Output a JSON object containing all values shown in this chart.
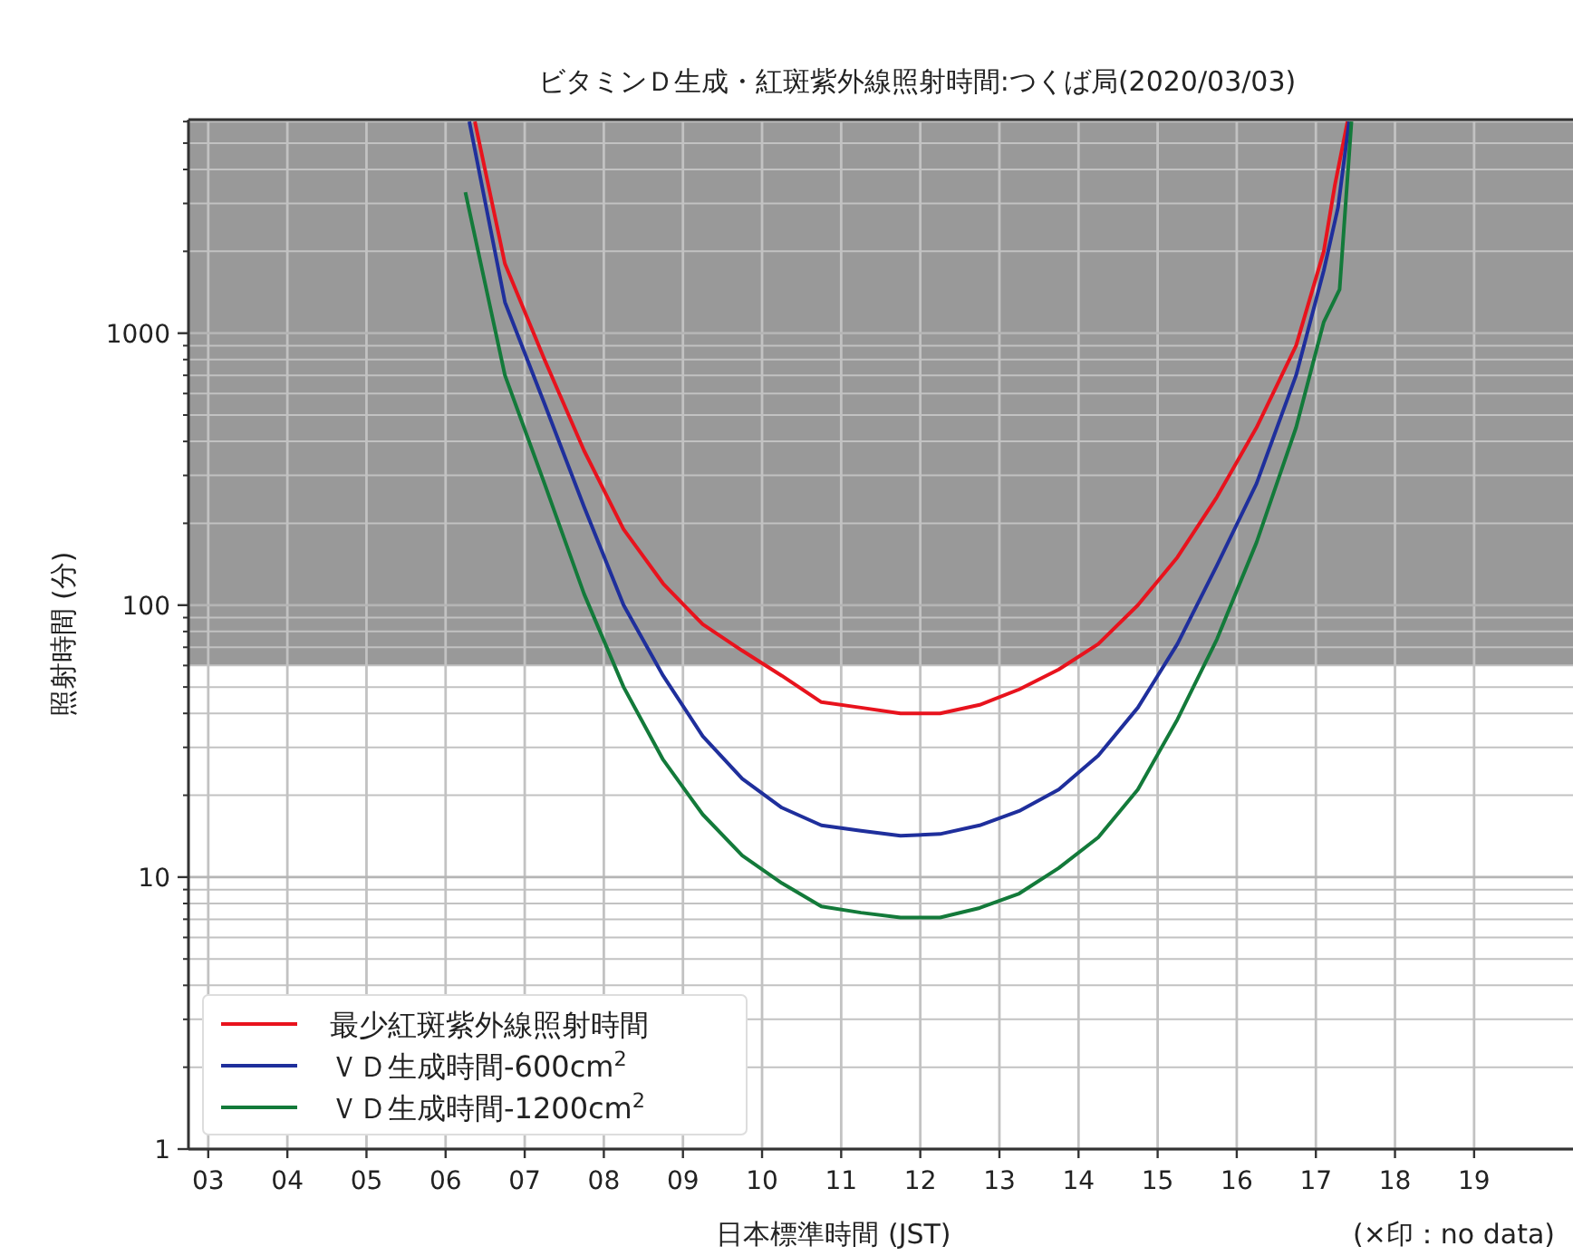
{
  "chart_data": {
    "type": "line",
    "title": "ビタミンＤ生成・紅斑紫外線照射時間:つくば局(2020/03/03)",
    "xlabel": "日本標準時間 (JST)",
    "ylabel": "照射時間 (分)",
    "annotations": [
      "(×印：no data)"
    ],
    "log": "y",
    "grid": true,
    "legend": "bottom left",
    "xlim": [
      2.75,
      20.25
    ],
    "ylim": [
      1,
      6100
    ],
    "xticks": [
      {
        "value": 3,
        "label": "03"
      },
      {
        "value": 4,
        "label": "04"
      },
      {
        "value": 5,
        "label": "05"
      },
      {
        "value": 6,
        "label": "06"
      },
      {
        "value": 7,
        "label": "07"
      },
      {
        "value": 8,
        "label": "08"
      },
      {
        "value": 9,
        "label": "09"
      },
      10,
      11,
      12,
      13,
      14,
      15,
      16,
      17,
      18,
      19
    ],
    "yticks": [
      1,
      10,
      100,
      1000
    ],
    "bands": [
      {
        "axis": "y",
        "from": 60,
        "to": 6100,
        "color": "#999999"
      }
    ],
    "series": [
      {
        "name": "最少紅斑紫外線照射時間",
        "color": "#e8131d",
        "x": [
          6.37,
          6.75,
          7.25,
          7.75,
          8.25,
          8.75,
          9.25,
          9.75,
          10.25,
          10.75,
          11.25,
          11.75,
          12.25,
          12.75,
          13.25,
          13.75,
          14.25,
          14.75,
          15.25,
          15.75,
          16.25,
          16.75,
          17.1,
          17.24,
          17.4
        ],
        "values": [
          6000,
          1800,
          800,
          370,
          190,
          120,
          85,
          68,
          55,
          44,
          42,
          40,
          40,
          43,
          49,
          58,
          72,
          100,
          150,
          250,
          450,
          900,
          2000,
          3500,
          6000
        ]
      },
      {
        "name": "ＶＤ生成時間-600cm$^{2}$",
        "color": "#1f2f9c",
        "x": [
          6.3,
          6.75,
          7.25,
          7.75,
          8.25,
          8.75,
          9.25,
          9.75,
          10.25,
          10.75,
          11.25,
          11.75,
          12.25,
          12.75,
          13.25,
          13.75,
          14.25,
          14.75,
          15.25,
          15.75,
          16.25,
          16.75,
          17.1,
          17.28,
          17.42
        ],
        "values": [
          6000,
          1300,
          550,
          230,
          100,
          55,
          33,
          23,
          18,
          15.5,
          14.8,
          14.2,
          14.4,
          15.5,
          17.5,
          21,
          28,
          42,
          72,
          140,
          280,
          700,
          1700,
          2900,
          6000
        ]
      },
      {
        "name": "ＶＤ生成時間-1200cm$^{2}$",
        "color": "#137a3a",
        "x": [
          6.25,
          6.75,
          7.25,
          7.75,
          8.25,
          8.75,
          9.25,
          9.75,
          10.25,
          10.75,
          11.25,
          11.75,
          12.25,
          12.75,
          13.25,
          13.75,
          14.25,
          14.75,
          15.25,
          15.75,
          16.25,
          16.75,
          17.1,
          17.3,
          17.45
        ],
        "values": [
          3300,
          700,
          280,
          110,
          50,
          27,
          17,
          12,
          9.5,
          7.8,
          7.4,
          7.1,
          7.1,
          7.7,
          8.7,
          10.8,
          14,
          21,
          38,
          75,
          170,
          450,
          1100,
          1450,
          6000
        ]
      }
    ]
  }
}
